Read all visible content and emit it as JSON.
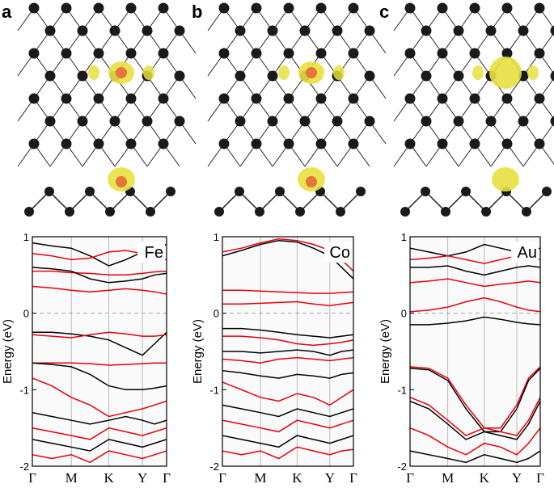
{
  "chart_data": [
    {
      "type": "line",
      "panel_label": "a",
      "annotation": "Fe",
      "ylabel": "Energy (eV)",
      "x": [
        0,
        0.145,
        0.29,
        0.43,
        0.57,
        0.695,
        0.82,
        0.91,
        1
      ],
      "xlim": [
        0,
        1
      ],
      "xticks": [
        {
          "value": 0,
          "label": "Γ"
        },
        {
          "value": 0.29,
          "label": "M"
        },
        {
          "value": 0.57,
          "label": "K"
        },
        {
          "value": 0.82,
          "label": "Y"
        },
        {
          "value": 1,
          "label": "Γ"
        }
      ],
      "ylim": [
        -2,
        1
      ],
      "yticks": [
        -2,
        -1,
        0,
        1
      ],
      "hline": 0,
      "grid": true,
      "series": [
        {
          "color": "#000000",
          "values": [
            0.92,
            0.88,
            0.85,
            0.75,
            0.62,
            0.7,
            0.8,
            0.85,
            0.9
          ]
        },
        {
          "color": "#e8000b",
          "values": [
            0.78,
            0.75,
            0.7,
            0.72,
            0.8,
            0.82,
            0.78,
            0.72,
            0.7
          ]
        },
        {
          "color": "#e8000b",
          "values": [
            0.55,
            0.55,
            0.53,
            0.52,
            0.5,
            0.5,
            0.52,
            0.54,
            0.55
          ]
        },
        {
          "color": "#000000",
          "values": [
            0.6,
            0.58,
            0.55,
            0.45,
            0.4,
            0.42,
            0.45,
            0.5,
            0.52
          ]
        },
        {
          "color": "#e8000b",
          "values": [
            0.35,
            0.33,
            0.3,
            0.28,
            0.3,
            0.32,
            0.3,
            0.28,
            0.25
          ]
        },
        {
          "color": "#000000",
          "values": [
            -0.25,
            -0.25,
            -0.27,
            -0.3,
            -0.35,
            -0.45,
            -0.55,
            -0.4,
            -0.25
          ]
        },
        {
          "color": "#e8000b",
          "values": [
            -0.28,
            -0.3,
            -0.32,
            -0.28,
            -0.25,
            -0.27,
            -0.3,
            -0.3,
            -0.28
          ]
        },
        {
          "color": "#e8000b",
          "values": [
            -0.65,
            -0.65,
            -0.65,
            -0.66,
            -0.68,
            -0.67,
            -0.66,
            -0.65,
            -0.65
          ]
        },
        {
          "color": "#000000",
          "values": [
            -0.65,
            -0.67,
            -0.7,
            -0.8,
            -0.95,
            -1.0,
            -1.0,
            -0.98,
            -0.95
          ]
        },
        {
          "color": "#e8000b",
          "values": [
            -0.85,
            -0.95,
            -1.1,
            -1.2,
            -1.35,
            -1.3,
            -1.25,
            -1.2,
            -1.15
          ]
        },
        {
          "color": "#000000",
          "values": [
            -1.3,
            -1.35,
            -1.4,
            -1.45,
            -1.4,
            -1.35,
            -1.4,
            -1.45,
            -1.4
          ]
        },
        {
          "color": "#e8000b",
          "values": [
            -1.5,
            -1.55,
            -1.6,
            -1.65,
            -1.5,
            -1.55,
            -1.6,
            -1.55,
            -1.5
          ]
        },
        {
          "color": "#000000",
          "values": [
            -1.65,
            -1.7,
            -1.75,
            -1.8,
            -1.65,
            -1.7,
            -1.75,
            -1.7,
            -1.65
          ]
        },
        {
          "color": "#e8000b",
          "values": [
            -1.85,
            -1.9,
            -1.85,
            -1.95,
            -1.8,
            -1.85,
            -1.9,
            -1.85,
            -1.8
          ]
        }
      ]
    },
    {
      "type": "line",
      "panel_label": "b",
      "annotation": "Co",
      "ylabel": "Energy (eV)",
      "x": [
        0,
        0.145,
        0.29,
        0.43,
        0.57,
        0.695,
        0.82,
        0.91,
        1
      ],
      "xlim": [
        0,
        1
      ],
      "xticks": [
        {
          "value": 0,
          "label": "Γ"
        },
        {
          "value": 0.29,
          "label": "M"
        },
        {
          "value": 0.57,
          "label": "K"
        },
        {
          "value": 0.82,
          "label": "Y"
        },
        {
          "value": 1,
          "label": "Γ"
        }
      ],
      "ylim": [
        -2,
        1
      ],
      "yticks": [
        -2,
        -1,
        0,
        1
      ],
      "hline": 0,
      "grid": true,
      "series": [
        {
          "color": "#000000",
          "values": [
            0.75,
            0.82,
            0.9,
            0.95,
            0.93,
            0.85,
            0.75,
            0.6,
            0.45
          ]
        },
        {
          "color": "#e8000b",
          "values": [
            0.8,
            0.85,
            0.92,
            0.97,
            0.95,
            0.9,
            0.82,
            0.7,
            0.55
          ]
        },
        {
          "color": "#e8000b",
          "values": [
            0.3,
            0.3,
            0.29,
            0.28,
            0.27,
            0.26,
            0.26,
            0.27,
            0.28
          ]
        },
        {
          "color": "#e8000b",
          "values": [
            0.12,
            0.12,
            0.13,
            0.14,
            0.15,
            0.12,
            0.1,
            0.12,
            0.14
          ]
        },
        {
          "color": "#000000",
          "values": [
            -0.2,
            -0.2,
            -0.22,
            -0.25,
            -0.28,
            -0.3,
            -0.32,
            -0.3,
            -0.28
          ]
        },
        {
          "color": "#e8000b",
          "values": [
            -0.3,
            -0.3,
            -0.32,
            -0.35,
            -0.4,
            -0.42,
            -0.4,
            -0.38,
            -0.35
          ]
        },
        {
          "color": "#000000",
          "values": [
            -0.5,
            -0.5,
            -0.52,
            -0.5,
            -0.48,
            -0.5,
            -0.55,
            -0.5,
            -0.48
          ]
        },
        {
          "color": "#e8000b",
          "values": [
            -0.6,
            -0.62,
            -0.65,
            -0.6,
            -0.58,
            -0.6,
            -0.62,
            -0.6,
            -0.58
          ]
        },
        {
          "color": "#000000",
          "values": [
            -0.75,
            -0.78,
            -0.82,
            -0.85,
            -0.8,
            -0.82,
            -0.85,
            -0.8,
            -0.78
          ]
        },
        {
          "color": "#e8000b",
          "values": [
            -0.9,
            -1.0,
            -1.1,
            -1.15,
            -1.05,
            -1.1,
            -1.2,
            -1.1,
            -1.0
          ]
        },
        {
          "color": "#000000",
          "values": [
            -1.2,
            -1.25,
            -1.3,
            -1.35,
            -1.25,
            -1.3,
            -1.35,
            -1.3,
            -1.25
          ]
        },
        {
          "color": "#e8000b",
          "values": [
            -1.4,
            -1.45,
            -1.5,
            -1.55,
            -1.4,
            -1.45,
            -1.5,
            -1.45,
            -1.4
          ]
        },
        {
          "color": "#000000",
          "values": [
            -1.6,
            -1.65,
            -1.7,
            -1.75,
            -1.6,
            -1.65,
            -1.7,
            -1.65,
            -1.6
          ]
        },
        {
          "color": "#e8000b",
          "values": [
            -1.8,
            -1.85,
            -1.8,
            -1.9,
            -1.75,
            -1.8,
            -1.85,
            -1.8,
            -1.78
          ]
        }
      ]
    },
    {
      "type": "line",
      "panel_label": "c",
      "annotation": "Au",
      "ylabel": "Energy (eV)",
      "x": [
        0,
        0.145,
        0.29,
        0.43,
        0.57,
        0.695,
        0.82,
        0.91,
        1
      ],
      "xlim": [
        0,
        1
      ],
      "xticks": [
        {
          "value": 0,
          "label": "Γ"
        },
        {
          "value": 0.29,
          "label": "M"
        },
        {
          "value": 0.57,
          "label": "K"
        },
        {
          "value": 0.82,
          "label": "Y"
        },
        {
          "value": 1,
          "label": "Γ"
        }
      ],
      "ylim": [
        -2,
        1
      ],
      "yticks": [
        -2,
        -1,
        0,
        1
      ],
      "hline": 0,
      "grid": true,
      "series": [
        {
          "color": "#000000",
          "values": [
            0.85,
            0.8,
            0.75,
            0.8,
            0.9,
            0.85,
            0.8,
            0.82,
            0.85
          ]
        },
        {
          "color": "#e8000b",
          "values": [
            0.7,
            0.72,
            0.75,
            0.7,
            0.65,
            0.7,
            0.75,
            0.72,
            0.7
          ]
        },
        {
          "color": "#000000",
          "values": [
            0.6,
            0.6,
            0.62,
            0.55,
            0.5,
            0.55,
            0.6,
            0.62,
            0.6
          ]
        },
        {
          "color": "#e8000b",
          "values": [
            0.4,
            0.42,
            0.45,
            0.4,
            0.35,
            0.38,
            0.4,
            0.42,
            0.4
          ]
        },
        {
          "color": "#e8000b",
          "values": [
            0.02,
            0.04,
            0.08,
            0.15,
            0.2,
            0.15,
            0.08,
            0.04,
            0.02
          ]
        },
        {
          "color": "#000000",
          "values": [
            -0.15,
            -0.15,
            -0.13,
            -0.1,
            -0.05,
            -0.08,
            -0.12,
            -0.14,
            -0.15
          ]
        },
        {
          "color": "#e8000b",
          "values": [
            -0.7,
            -0.72,
            -0.85,
            -1.2,
            -1.5,
            -1.5,
            -1.2,
            -0.85,
            -0.7
          ]
        },
        {
          "color": "#000000",
          "values": [
            -0.72,
            -0.74,
            -0.88,
            -1.25,
            -1.55,
            -1.55,
            -1.25,
            -0.88,
            -0.72
          ]
        },
        {
          "color": "#e8000b",
          "values": [
            -1.1,
            -1.2,
            -1.4,
            -1.6,
            -1.5,
            -1.55,
            -1.6,
            -1.4,
            -1.1
          ]
        },
        {
          "color": "#000000",
          "values": [
            -1.15,
            -1.25,
            -1.45,
            -1.65,
            -1.55,
            -1.6,
            -1.65,
            -1.45,
            -1.15
          ]
        },
        {
          "color": "#e8000b",
          "values": [
            -1.5,
            -1.6,
            -1.75,
            -1.85,
            -1.7,
            -1.75,
            -1.85,
            -1.7,
            -1.5
          ]
        },
        {
          "color": "#000000",
          "values": [
            -1.8,
            -1.85,
            -1.9,
            -1.95,
            -1.85,
            -1.9,
            -1.95,
            -1.9,
            -1.8
          ]
        }
      ]
    }
  ]
}
